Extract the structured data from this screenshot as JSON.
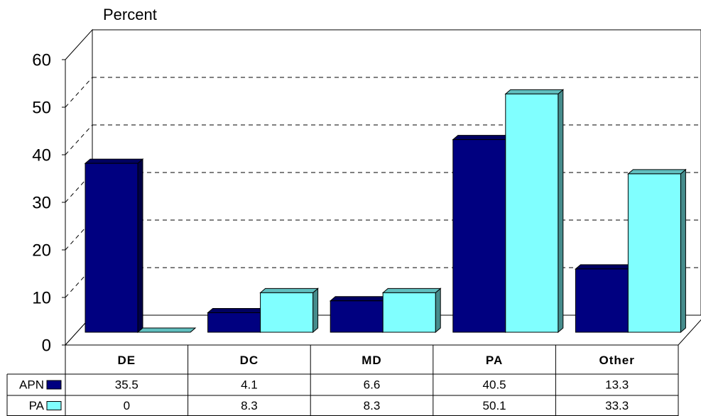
{
  "chart_data": {
    "type": "bar3d",
    "ylabel": "Percent",
    "categories": [
      "DE",
      "DC",
      "MD",
      "PA",
      "Other"
    ],
    "series": [
      {
        "name": "APN",
        "color": "#000080",
        "values": [
          35.5,
          4.1,
          6.6,
          40.5,
          13.3
        ]
      },
      {
        "name": "PA",
        "color": "#80ffff",
        "values": [
          0,
          8.3,
          8.3,
          50.1,
          33.3
        ]
      }
    ],
    "ylim": [
      0,
      60
    ],
    "yticks": [
      0,
      10,
      20,
      30,
      40,
      50,
      60
    ],
    "grid": true
  }
}
